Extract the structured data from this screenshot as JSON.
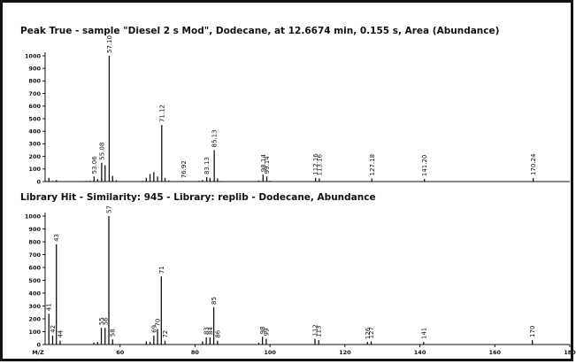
{
  "chart_data": [
    {
      "type": "bar",
      "title": "Peak True - sample \"Diesel 2 s Mod\", Dodecane, at 12.6674 min, 0.155 s, Area (Abundance)",
      "xlabel": "",
      "ylabel": "",
      "xlim": [
        40,
        180
      ],
      "ylim": [
        0,
        1000
      ],
      "yticks": [
        0,
        100,
        200,
        300,
        400,
        500,
        600,
        700,
        800,
        900,
        1000
      ],
      "xticks": [],
      "peaks": [
        {
          "x": 41,
          "y": 30
        },
        {
          "x": 42,
          "y": 5
        },
        {
          "x": 43,
          "y": 12
        },
        {
          "x": 50,
          "y": 4
        },
        {
          "x": 51,
          "y": 5
        },
        {
          "x": 52,
          "y": 6
        },
        {
          "x": 53.06,
          "y": 40,
          "label": "53.06"
        },
        {
          "x": 54,
          "y": 20
        },
        {
          "x": 55.08,
          "y": 150,
          "label": "55.08"
        },
        {
          "x": 56,
          "y": 130
        },
        {
          "x": 57.1,
          "y": 1000,
          "label": "57.10"
        },
        {
          "x": 58,
          "y": 45
        },
        {
          "x": 59,
          "y": 10
        },
        {
          "x": 66,
          "y": 6
        },
        {
          "x": 67,
          "y": 30
        },
        {
          "x": 68,
          "y": 60
        },
        {
          "x": 69,
          "y": 75
        },
        {
          "x": 70,
          "y": 40
        },
        {
          "x": 71.12,
          "y": 450,
          "label": "71.12"
        },
        {
          "x": 72,
          "y": 30
        },
        {
          "x": 73,
          "y": 8
        },
        {
          "x": 76.92,
          "y": 5,
          "label": "76.92"
        },
        {
          "x": 81,
          "y": 6
        },
        {
          "x": 82,
          "y": 12
        },
        {
          "x": 83.13,
          "y": 35,
          "label": "83.13"
        },
        {
          "x": 84,
          "y": 30
        },
        {
          "x": 85.13,
          "y": 250,
          "label": "85.13"
        },
        {
          "x": 86,
          "y": 25
        },
        {
          "x": 87,
          "y": 5
        },
        {
          "x": 97,
          "y": 8
        },
        {
          "x": 98.14,
          "y": 55,
          "label": "98.14"
        },
        {
          "x": 99.14,
          "y": 40,
          "label": "99.14"
        },
        {
          "x": 100,
          "y": 6
        },
        {
          "x": 112.16,
          "y": 30,
          "label": "112.16"
        },
        {
          "x": 113.16,
          "y": 25,
          "label": "113.16"
        },
        {
          "x": 114,
          "y": 4
        },
        {
          "x": 127.18,
          "y": 25,
          "label": "127.18"
        },
        {
          "x": 128,
          "y": 3
        },
        {
          "x": 141.2,
          "y": 20,
          "label": "141.20"
        },
        {
          "x": 170.24,
          "y": 28,
          "label": "170.24"
        }
      ]
    },
    {
      "type": "bar",
      "title": "Library Hit - Similarity: 945 - Library: replib - Dodecane, Abundance",
      "xlabel": "M/Z",
      "ylabel": "",
      "xlim": [
        40,
        180
      ],
      "ylim": [
        0,
        1000
      ],
      "yticks": [
        0,
        100,
        200,
        300,
        400,
        500,
        600,
        700,
        800,
        900,
        1000
      ],
      "xticks": [
        60,
        80,
        100,
        120,
        140,
        160,
        180
      ],
      "peaks": [
        {
          "x": 41,
          "y": 240,
          "label": "41"
        },
        {
          "x": 42,
          "y": 70,
          "label": "42"
        },
        {
          "x": 43,
          "y": 780,
          "label": "43"
        },
        {
          "x": 44,
          "y": 30,
          "label": "44"
        },
        {
          "x": 53,
          "y": 15
        },
        {
          "x": 54,
          "y": 20
        },
        {
          "x": 55,
          "y": 130,
          "label": "55"
        },
        {
          "x": 56,
          "y": 130,
          "label": "56"
        },
        {
          "x": 57,
          "y": 1000,
          "label": "57"
        },
        {
          "x": 58,
          "y": 40,
          "label": "58"
        },
        {
          "x": 67,
          "y": 25
        },
        {
          "x": 68,
          "y": 20
        },
        {
          "x": 69,
          "y": 70,
          "label": "69"
        },
        {
          "x": 70,
          "y": 120,
          "label": "70"
        },
        {
          "x": 71,
          "y": 530,
          "label": "71"
        },
        {
          "x": 72,
          "y": 30,
          "label": "72"
        },
        {
          "x": 82,
          "y": 25
        },
        {
          "x": 83,
          "y": 55,
          "label": "83"
        },
        {
          "x": 84,
          "y": 55,
          "label": "84"
        },
        {
          "x": 85,
          "y": 290,
          "label": "85"
        },
        {
          "x": 86,
          "y": 30,
          "label": "86"
        },
        {
          "x": 97,
          "y": 15
        },
        {
          "x": 98,
          "y": 60,
          "label": "98"
        },
        {
          "x": 99,
          "y": 45,
          "label": "99"
        },
        {
          "x": 112,
          "y": 45,
          "label": "112"
        },
        {
          "x": 113,
          "y": 35,
          "label": "113"
        },
        {
          "x": 126,
          "y": 20,
          "label": "126"
        },
        {
          "x": 127,
          "y": 25,
          "label": "127"
        },
        {
          "x": 141,
          "y": 20,
          "label": "141"
        },
        {
          "x": 170,
          "y": 35,
          "label": "170"
        }
      ]
    }
  ]
}
